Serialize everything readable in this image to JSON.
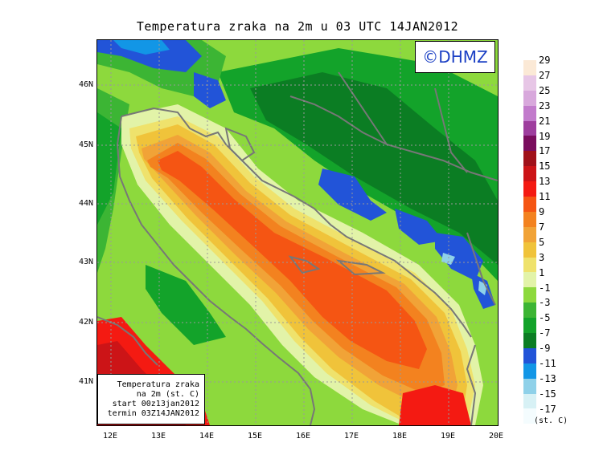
{
  "title": "Temperatura zraka na 2m u 03 UTC 14JAN2012",
  "logo": "©DHMZ",
  "info_box": {
    "line1": "Temperatura zraka",
    "line2": "na 2m (st. C)",
    "line3": "start 00z13jan2012",
    "line4": "termin 03Z14JAN2012"
  },
  "lat_labels": [
    "46N",
    "45N",
    "44N",
    "43N",
    "42N",
    "41N"
  ],
  "lon_labels": [
    "12E",
    "13E",
    "14E",
    "15E",
    "16E",
    "17E",
    "18E",
    "19E",
    "20E"
  ],
  "legend": {
    "labels": [
      "29",
      "27",
      "25",
      "23",
      "21",
      "19",
      "17",
      "15",
      "13",
      "11",
      "9",
      "7",
      "5",
      "3",
      "1",
      "-1",
      "-3",
      "-5",
      "-7",
      "-9",
      "-11",
      "-13",
      "-15",
      "-17"
    ],
    "colors": [
      "#fbe9d6",
      "#e7c6e6",
      "#d8a8dc",
      "#c27bcc",
      "#9e3e9e",
      "#7a0d5e",
      "#a0111a",
      "#cc1417",
      "#f41a12",
      "#f55513",
      "#f3821f",
      "#f1a337",
      "#f0c33a",
      "#efe26c",
      "#e2f3a8",
      "#8dd93d",
      "#3cb534",
      "#13a32a",
      "#0b7d23",
      "#2254d8",
      "#1296e6",
      "#8fd1e9",
      "#d7f1f5",
      "#f4fcfe"
    ],
    "unit": "(st. C)"
  }
}
